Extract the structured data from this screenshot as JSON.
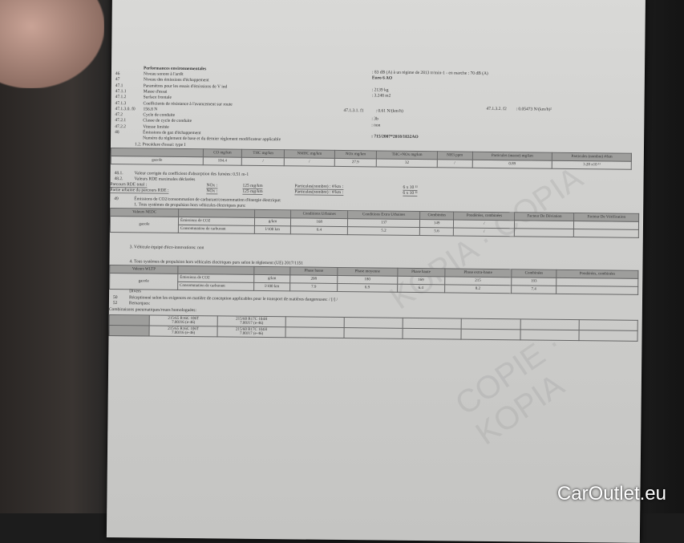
{
  "header": {
    "title": "Performances environnementales"
  },
  "lines": [
    {
      "num": "46",
      "label": "Niveau sonore à l'arrêt",
      "value": ": 83 dB (A)  à un régime de 2813 tr/min-1 - en marche :  70 dB (A)"
    },
    {
      "num": "47",
      "label": "Niveau des émissions d'échappement",
      "value": "Euro 6 AO"
    },
    {
      "num": "47.1",
      "label": "Paramètres pour les essais d'émissions de V ind",
      "value": ""
    },
    {
      "num": "47.1.1",
      "label": "Masse d'essai",
      "value": ": 2139        kg"
    },
    {
      "num": "47.1.2",
      "label": "Surface frontale",
      "value": ": 3.248        m2"
    },
    {
      "num": "47.1.3",
      "label": "Coefficients de résistance à l'avancement sur route",
      "value": ""
    },
    {
      "num": "47.1.3.0. f0",
      "label": "156.8 N",
      "value": ""
    },
    {
      "num": "47.2",
      "label": "Cycle de conduite",
      "value": ""
    },
    {
      "num": "47.2.1",
      "label": "Classe de cycle de conduite",
      "value": ": 3b"
    },
    {
      "num": "47.2.2",
      "label": "Vitesse limitée",
      "value": ": non"
    },
    {
      "num": "48",
      "label": "Émissions de gaz d'échappement",
      "value": ""
    },
    {
      "num": "",
      "label": "Numéro du règlement de base et du dernier règlement modificateur applicable",
      "value": ": 715/2007*2018/1832AO"
    }
  ],
  "f1": {
    "label": "47.1.3.1. f1",
    "value": ": 0.61 N/(km/h)"
  },
  "f2": {
    "label": "47.1.3.2. f2",
    "value": ": 0.05473 N/(km/h)²"
  },
  "type1": {
    "caption": "1.2. Procédure d'essai: type I",
    "headers": [
      "CO mg/km",
      "THC mg/km",
      "NMHC mg/km",
      "NOx mg/km",
      "THC+NOx mg/km",
      "NH3 ppm",
      "Particules (masse) mg/km",
      "Particules (nombre) #/km"
    ],
    "row": {
      "label": "gazole",
      "values": [
        "104.4",
        "/",
        "/",
        "27.9",
        "32",
        "/",
        "0.89",
        "3.28 x10 ¹¹"
      ]
    }
  },
  "smoke": {
    "num": "48.1.",
    "text": "Valeur corrigée du coefficient d'absorption des fumées: 0.51 m-1"
  },
  "rde": {
    "num": "48.2.",
    "text": "Valeurs RDE maximales déclarées",
    "rows": [
      {
        "label": "Parcours RDE total :",
        "nox": "NOx :",
        "nox_val": "125 mg/km",
        "part": "Particules(nombre) : #/km :",
        "part_val": "6 x 10 ¹¹"
      },
      {
        "label": "Partie urbaine du parcours RDE   :",
        "nox": "NOx :",
        "nox_val": "125 mg/km",
        "part": "Particules(nombre) : #/km :",
        "part_val": "6 x 10 ¹¹"
      }
    ]
  },
  "co2": {
    "num": "49",
    "text": "Émissions de CO2/consommation de carburant/consommation d'énergie électrique:",
    "sub1": "1. Tous systèmes de propulsion hors véhicules électriques purs:",
    "nedc": {
      "title": "Valeurs NEDC",
      "headers": [
        "Conditions Urbaines",
        "Conditions Extra Urbaines",
        "Combinées",
        "Pondérées, combinées",
        "Facteur De Déviation",
        "Facteur De Vérification"
      ],
      "fuel": "gazole",
      "rows": [
        {
          "label": "Émissions de CO2",
          "unit": "g/km",
          "values": [
            "168",
            "137",
            "149",
            "/"
          ]
        },
        {
          "label": "Consommation de carburant",
          "unit": "l/100 km",
          "values": [
            "6.4",
            "5.2",
            "5.6",
            "/"
          ]
        }
      ]
    },
    "sub3": "3. Véhicule équipé d'éco-innovations: non",
    "sub4": "4. Tous systèmes de propulsion hors véhicules électriques purs selon le règlement (UE) 2017/1151",
    "wltp": {
      "title": "Valeurs WLTP",
      "headers": [
        "Phase basse",
        "Phase moyenne",
        "Phase haute",
        "Phase extra-haute",
        "Combinées",
        "Pondérées, combinées"
      ],
      "fuel": "gazole",
      "rows": [
        {
          "label": "Émissions de CO2",
          "unit": "g/km",
          "values": [
            "208",
            "180",
            "169",
            "215",
            "193",
            ""
          ]
        },
        {
          "label": "Consommation de carburant",
          "unit": "l/100 km",
          "values": [
            "7.9",
            "6.9",
            "6.4",
            "8.2",
            "7.4",
            ""
          ]
        }
      ]
    }
  },
  "misc": [
    {
      "num": "",
      "text": "Divers"
    },
    {
      "num": "50",
      "text": "Réceptionné selon les exigences en matière de conception applicables pour le transport de matières dangereuses: / [/] /"
    },
    {
      "num": "52",
      "text": "Remarques:"
    },
    {
      "num": "",
      "text": "Combinaisons pneumatiques/roues homologuées:"
    }
  ],
  "tyres": [
    {
      "a": "215/65 R16C 106T",
      "a2": "7.00J16 (e-46)",
      "b": "215/60 R17C 104H",
      "b2": "7.00J17 (e-46)"
    },
    {
      "a": "215/65 R16C 106T",
      "a2": "7.00J16 (e-46)",
      "b": "215/60 R17C 104H",
      "b2": "7.00J17 (e-46)"
    }
  ],
  "watermark": "KOPIA COPIA COPIE",
  "logo": "CarOutlet.eu"
}
